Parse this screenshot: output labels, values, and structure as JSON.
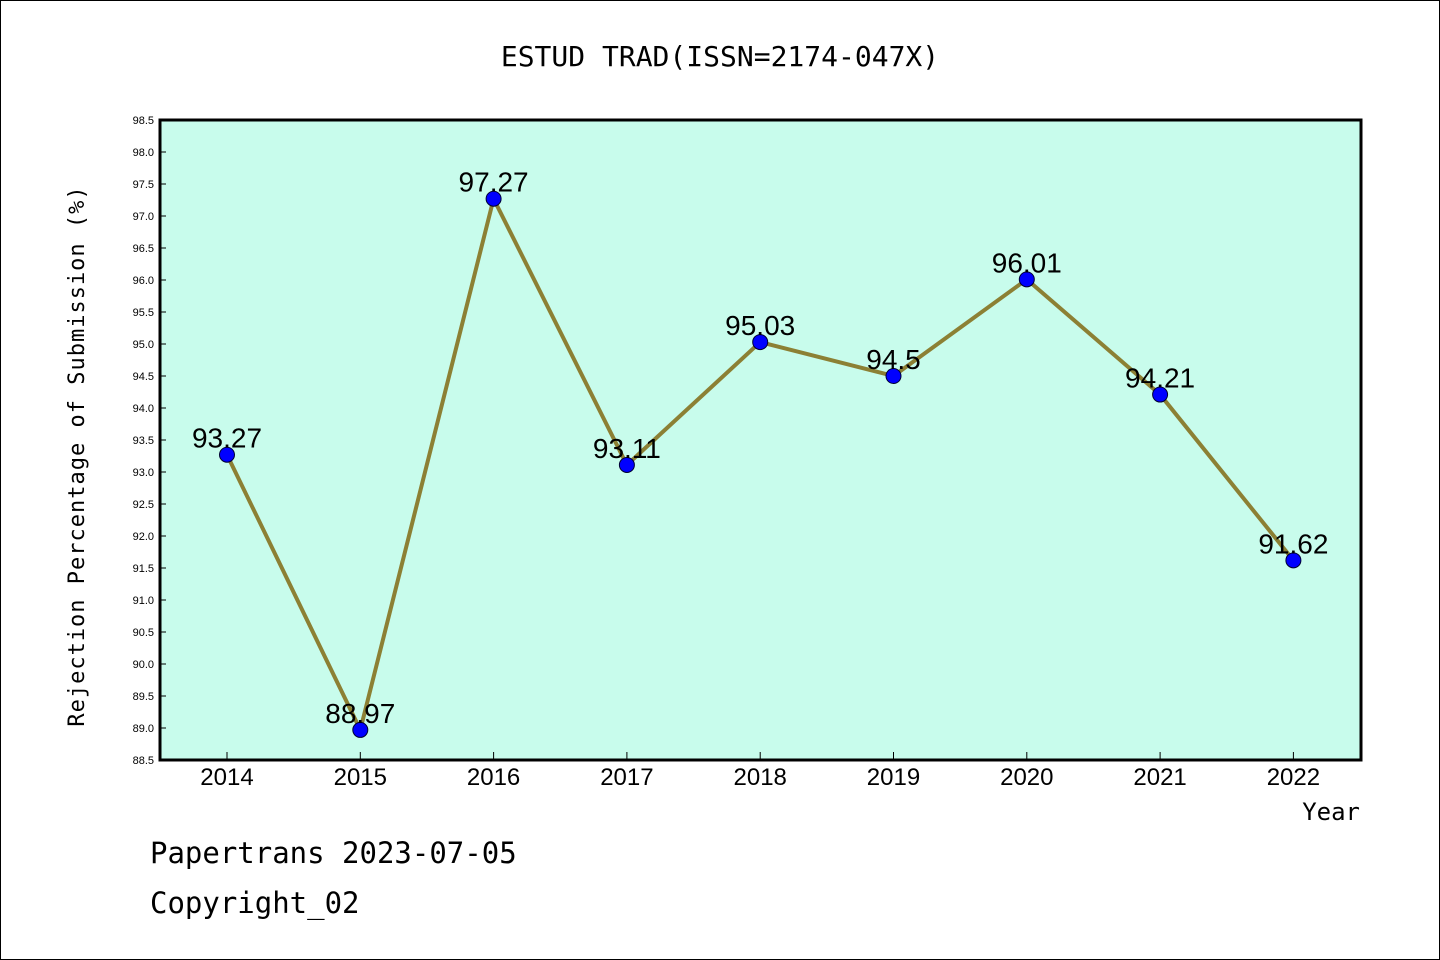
{
  "chart_data": {
    "type": "line",
    "title": "ESTUD TRAD(ISSN=2174-047X)",
    "xlabel": "Year",
    "ylabel": "Rejection Percentage of Submission (%)",
    "categories": [
      "2014",
      "2015",
      "2016",
      "2017",
      "2018",
      "2019",
      "2020",
      "2021",
      "2022"
    ],
    "values": [
      93.27,
      88.97,
      97.27,
      93.11,
      95.03,
      94.5,
      96.01,
      94.21,
      91.62
    ],
    "value_labels": [
      "93.27",
      "88.97",
      "97.27",
      "93.11",
      "95.03",
      "94.5",
      "96.01",
      "94.21",
      "91.62"
    ],
    "ylim": [
      88.5,
      98.5
    ],
    "yticks": [
      "88.5",
      "89.0",
      "89.5",
      "90.0",
      "90.5",
      "91.0",
      "91.5",
      "92.0",
      "92.5",
      "93.0",
      "93.5",
      "94.0",
      "94.5",
      "95.0",
      "95.5",
      "96.0",
      "96.5",
      "97.0",
      "97.5",
      "98.0",
      "98.5"
    ],
    "grid": false,
    "colors": {
      "background": "#c8fcec",
      "line": "#8c8034",
      "marker": "#0000ff"
    }
  },
  "footer": {
    "line1": "Papertrans 2023-07-05",
    "line2": "Copyright_02"
  }
}
